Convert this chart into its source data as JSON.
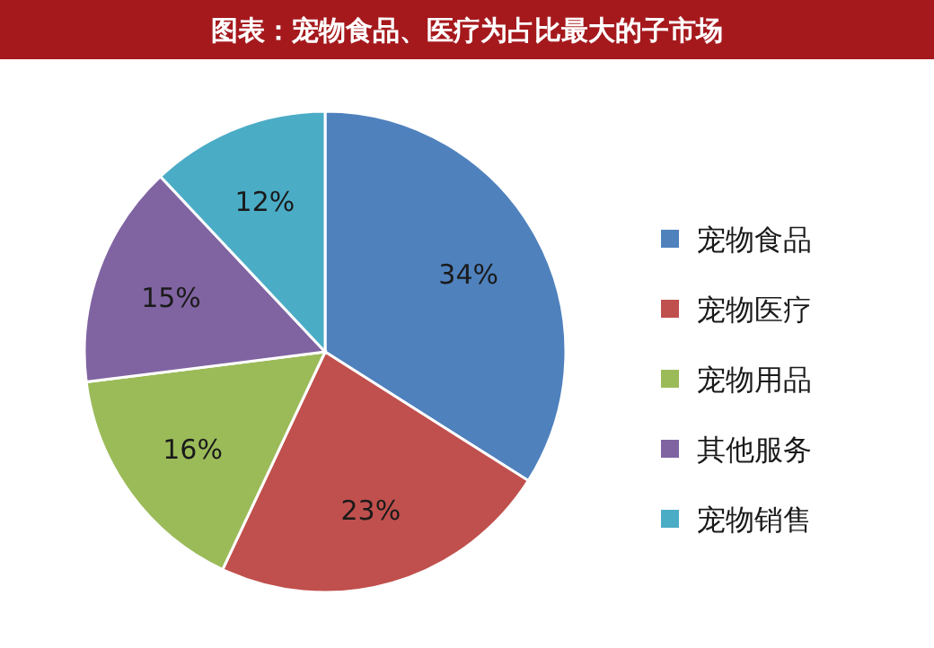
{
  "chart_data": {
    "type": "pie",
    "title": "图表：宠物食品、医疗为占比最大的子市场",
    "categories": [
      "宠物食品",
      "宠物医疗",
      "宠物用品",
      "其他服务",
      "宠物销售"
    ],
    "values": [
      34,
      23,
      16,
      15,
      12
    ],
    "colors": [
      "#4f81bd",
      "#c0504d",
      "#9bbb59",
      "#8064a2",
      "#4bacc6"
    ],
    "value_labels": [
      "34%",
      "23%",
      "16%",
      "15%",
      "12%"
    ],
    "legend": "right"
  }
}
